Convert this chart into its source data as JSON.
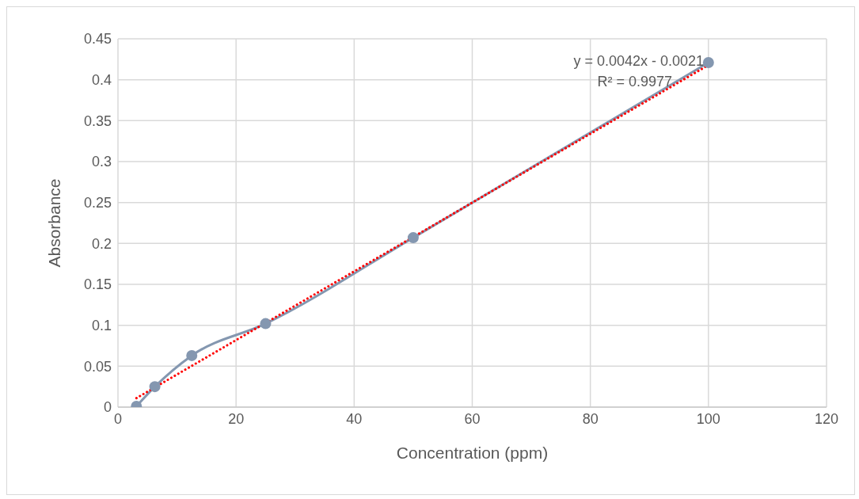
{
  "chart_data": {
    "type": "line",
    "xlabel": "Concentration (ppm)",
    "ylabel": "Absorbance",
    "x": [
      3.125,
      6.25,
      12.5,
      25,
      50,
      100
    ],
    "series": [
      {
        "color": "#8497b0",
        "values": [
          0.001,
          0.025,
          0.063,
          0.102,
          0.207,
          0.421
        ],
        "marker": "circle",
        "line_style": "solid"
      },
      {
        "color": "#ff0000",
        "x": [
          3.125,
          100
        ],
        "values": [
          0.011,
          0.4179
        ],
        "marker": "none",
        "line_style": "dotted"
      }
    ],
    "xlim": [
      0,
      120
    ],
    "xticks": [
      0,
      20,
      40,
      60,
      80,
      100,
      120
    ],
    "ylim": [
      0,
      0.45
    ],
    "yticks": [
      0,
      0.05,
      0.1,
      0.15,
      0.2,
      0.25,
      0.3,
      0.35,
      0.4,
      0.45
    ],
    "grid": true,
    "annotations": [
      "y = 0.0042x - 0.0021",
      "R² = 0.9977"
    ]
  }
}
